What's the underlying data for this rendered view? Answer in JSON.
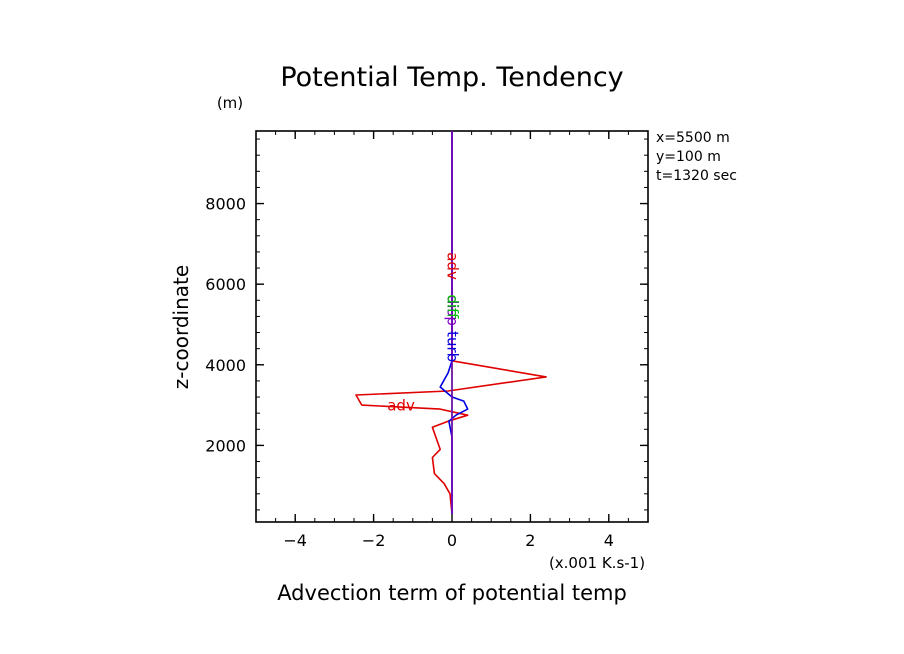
{
  "chart_data": {
    "type": "line",
    "title": "Potential Temp. Tendency",
    "xlabel": "Advection term of potential temp",
    "ylabel": "z-coordinate",
    "x_unit": "(x.001 K.s-1)",
    "y_unit": "(m)",
    "xlim": [
      -5,
      5
    ],
    "ylim": [
      100,
      9800
    ],
    "x_ticks": [
      -4,
      -2,
      0,
      2,
      4
    ],
    "y_ticks": [
      2000,
      4000,
      6000,
      8000
    ],
    "grid": false,
    "annotations": [
      "x=5500 m",
      "y=100 m",
      "t=1320 sec"
    ],
    "series": [
      {
        "name": "adv",
        "color": "#e00000",
        "points": [
          [
            0,
            300
          ],
          [
            -0.05,
            800
          ],
          [
            -0.2,
            1050
          ],
          [
            -0.45,
            1300
          ],
          [
            -0.5,
            1700
          ],
          [
            -0.3,
            1900
          ],
          [
            -0.5,
            2450
          ],
          [
            -0.1,
            2600
          ],
          [
            0.4,
            2750
          ],
          [
            -0.3,
            2900
          ],
          [
            -2.3,
            3000
          ],
          [
            -2.45,
            3250
          ],
          [
            -0.1,
            3350
          ],
          [
            2.4,
            3700
          ],
          [
            0,
            4100
          ],
          [
            0,
            9800
          ]
        ]
      },
      {
        "name": "turb",
        "color": "#0000e0",
        "points": [
          [
            0,
            300
          ],
          [
            0,
            2200
          ],
          [
            -0.08,
            2600
          ],
          [
            0.1,
            2750
          ],
          [
            0.4,
            2900
          ],
          [
            0.3,
            3100
          ],
          [
            0,
            3200
          ],
          [
            -0.3,
            3450
          ],
          [
            -0.1,
            3800
          ],
          [
            0,
            4100
          ],
          [
            0,
            9800
          ]
        ]
      },
      {
        "name": "diff",
        "color": "#00c000",
        "points": [
          [
            0,
            300
          ],
          [
            0,
            9800
          ]
        ]
      },
      {
        "name": "disp",
        "color": "#8000c0",
        "points": [
          [
            0,
            300
          ],
          [
            0,
            9800
          ]
        ]
      }
    ]
  }
}
